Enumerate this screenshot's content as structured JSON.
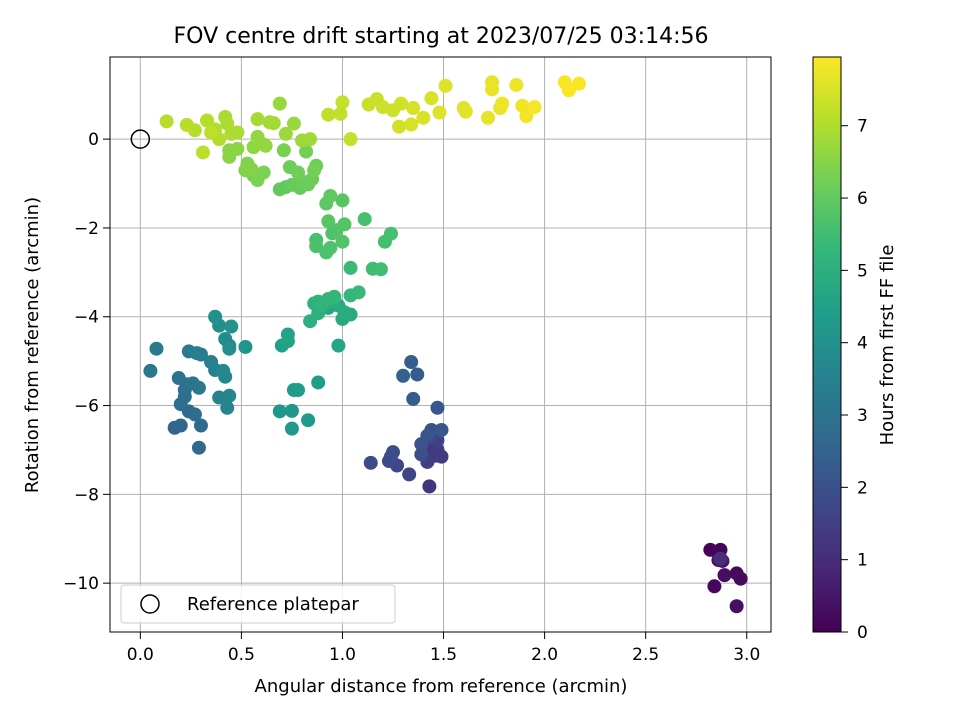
{
  "chart_data": {
    "type": "scatter",
    "title": "FOV centre drift starting at 2023/07/25 03:14:56",
    "xlabel": "Angular distance from reference (arcmin)",
    "ylabel": "Rotation from reference (arcmin)",
    "xlim": [
      -0.15,
      3.12
    ],
    "ylim": [
      -11.1,
      1.85
    ],
    "x_ticks": [
      0.0,
      0.5,
      1.0,
      1.5,
      2.0,
      2.5,
      3.0
    ],
    "x_tick_labels": [
      "0.0",
      "0.5",
      "1.0",
      "1.5",
      "2.0",
      "2.5",
      "3.0"
    ],
    "y_ticks": [
      0,
      -2,
      -4,
      -6,
      -8,
      -10
    ],
    "y_tick_labels": [
      "0",
      "−2",
      "−4",
      "−6",
      "−8",
      "−10"
    ],
    "grid": true,
    "legend": {
      "placement": "lower-left",
      "entries": [
        {
          "label": "Reference platepar",
          "marker": "open-circle",
          "x": 0,
          "y": 0
        }
      ]
    },
    "colorbar": {
      "label": "Hours from first FF file",
      "colormap": "viridis",
      "range": [
        0,
        7.95
      ],
      "ticks": [
        0,
        1,
        2,
        3,
        4,
        5,
        6,
        7
      ],
      "tick_labels": [
        "0",
        "1",
        "2",
        "3",
        "4",
        "5",
        "6",
        "7"
      ]
    },
    "colors": {
      "viridis": [
        "#440154",
        "#482878",
        "#3e4989",
        "#31688e",
        "#26828e",
        "#1f9e89",
        "#35b779",
        "#6ece58",
        "#b5de2b",
        "#fde725"
      ]
    },
    "series": [
      {
        "marker": "filled-circle",
        "points": [
          [
            2.82,
            -9.25,
            0.05
          ],
          [
            2.87,
            -9.25,
            0.1
          ],
          [
            2.84,
            -10.07,
            0.15
          ],
          [
            2.95,
            -9.78,
            0.2
          ],
          [
            2.97,
            -9.9,
            0.25
          ],
          [
            2.89,
            -9.82,
            0.3
          ],
          [
            2.95,
            -10.52,
            0.35
          ],
          [
            2.86,
            -9.48,
            0.4
          ],
          [
            2.88,
            -9.5,
            0.5
          ],
          [
            2.87,
            -9.45,
            1.05
          ],
          [
            1.43,
            -7.82,
            1.2
          ],
          [
            1.46,
            -7.13,
            1.25
          ],
          [
            1.41,
            -7.05,
            1.3
          ],
          [
            1.43,
            -6.9,
            1.35
          ],
          [
            1.47,
            -7.0,
            1.4
          ],
          [
            1.49,
            -7.15,
            1.45
          ],
          [
            1.42,
            -7.27,
            1.5
          ],
          [
            1.47,
            -6.78,
            1.55
          ],
          [
            1.43,
            -6.72,
            1.6
          ],
          [
            1.33,
            -7.55,
            1.65
          ],
          [
            1.27,
            -7.35,
            1.7
          ],
          [
            1.24,
            -7.15,
            1.75
          ],
          [
            1.23,
            -7.25,
            1.8
          ],
          [
            1.14,
            -7.29,
            1.85
          ],
          [
            1.25,
            -7.05,
            1.9
          ],
          [
            1.39,
            -7.1,
            1.95
          ],
          [
            1.44,
            -6.55,
            2.0
          ],
          [
            1.39,
            -6.87,
            2.05
          ],
          [
            1.42,
            -6.68,
            2.1
          ],
          [
            1.47,
            -6.05,
            2.15
          ],
          [
            1.49,
            -6.55,
            2.2
          ],
          [
            1.37,
            -5.3,
            2.3
          ],
          [
            1.35,
            -5.85,
            2.35
          ],
          [
            1.34,
            -5.02,
            2.4
          ],
          [
            1.3,
            -5.33,
            2.45
          ],
          [
            0.17,
            -6.5,
            2.55
          ],
          [
            0.2,
            -6.45,
            2.6
          ],
          [
            0.29,
            -6.95,
            2.65
          ],
          [
            0.3,
            -6.45,
            2.7
          ],
          [
            0.24,
            -6.13,
            2.75
          ],
          [
            0.27,
            -6.2,
            2.8
          ],
          [
            0.2,
            -5.97,
            2.85
          ],
          [
            0.22,
            -5.8,
            2.9
          ],
          [
            0.22,
            -5.65,
            2.95
          ],
          [
            0.23,
            -5.52,
            3.0
          ],
          [
            0.19,
            -5.38,
            3.05
          ],
          [
            0.26,
            -5.5,
            3.1
          ],
          [
            0.29,
            -5.6,
            3.15
          ],
          [
            0.05,
            -5.22,
            3.2
          ],
          [
            0.08,
            -4.72,
            3.25
          ],
          [
            0.24,
            -4.78,
            3.3
          ],
          [
            0.28,
            -4.82,
            3.35
          ],
          [
            0.3,
            -4.85,
            3.4
          ],
          [
            0.35,
            -5.02,
            3.45
          ],
          [
            0.37,
            -5.2,
            3.5
          ],
          [
            0.39,
            -5.82,
            3.55
          ],
          [
            0.43,
            -6.05,
            3.6
          ],
          [
            0.44,
            -5.78,
            3.65
          ],
          [
            0.42,
            -5.35,
            3.7
          ],
          [
            0.41,
            -5.22,
            3.75
          ],
          [
            0.44,
            -4.65,
            3.8
          ],
          [
            0.42,
            -4.5,
            3.85
          ],
          [
            0.44,
            -4.72,
            3.9
          ],
          [
            0.39,
            -4.2,
            3.95
          ],
          [
            0.37,
            -4.0,
            4.0
          ],
          [
            0.45,
            -4.22,
            4.05
          ],
          [
            0.52,
            -4.68,
            4.1
          ],
          [
            0.69,
            -6.13,
            4.15
          ],
          [
            0.75,
            -6.12,
            4.2
          ],
          [
            0.75,
            -6.52,
            4.25
          ],
          [
            0.83,
            -6.33,
            4.3
          ],
          [
            0.76,
            -5.65,
            4.35
          ],
          [
            0.78,
            -5.65,
            4.4
          ],
          [
            0.88,
            -5.48,
            4.45
          ],
          [
            0.7,
            -4.65,
            4.5
          ],
          [
            0.73,
            -4.55,
            4.55
          ],
          [
            0.73,
            -4.4,
            4.6
          ],
          [
            0.98,
            -4.65,
            4.65
          ],
          [
            0.93,
            -3.8,
            4.7
          ],
          [
            0.98,
            -3.75,
            4.75
          ],
          [
            1.0,
            -4.05,
            4.8
          ],
          [
            1.04,
            -3.95,
            4.85
          ],
          [
            1.01,
            -3.9,
            4.9
          ],
          [
            0.96,
            -3.65,
            4.95
          ],
          [
            0.88,
            -3.92,
            5.0
          ],
          [
            0.84,
            -4.1,
            5.0
          ],
          [
            0.86,
            -3.7,
            5.05
          ],
          [
            0.88,
            -3.66,
            5.1
          ],
          [
            0.9,
            -3.74,
            5.15
          ],
          [
            0.93,
            -3.6,
            5.2
          ],
          [
            0.96,
            -3.55,
            5.25
          ],
          [
            1.04,
            -3.52,
            5.3
          ],
          [
            1.08,
            -3.45,
            5.35
          ],
          [
            1.04,
            -2.9,
            5.4
          ],
          [
            1.15,
            -2.92,
            5.45
          ],
          [
            1.19,
            -2.93,
            5.5
          ],
          [
            1.21,
            -2.31,
            5.55
          ],
          [
            1.24,
            -2.13,
            5.6
          ],
          [
            1.11,
            -1.8,
            5.6
          ],
          [
            0.87,
            -2.27,
            5.6
          ],
          [
            0.87,
            -2.41,
            5.65
          ],
          [
            0.92,
            -2.55,
            5.65
          ],
          [
            0.94,
            -2.45,
            5.7
          ],
          [
            0.95,
            -2.12,
            5.7
          ],
          [
            0.97,
            -2.05,
            5.75
          ],
          [
            1.0,
            -2.31,
            5.75
          ],
          [
            1.01,
            -1.92,
            5.8
          ],
          [
            1.0,
            -1.38,
            5.85
          ],
          [
            0.93,
            -1.85,
            5.85
          ],
          [
            0.92,
            -1.45,
            5.9
          ],
          [
            0.94,
            -1.28,
            5.95
          ],
          [
            0.69,
            -1.13,
            6.0
          ],
          [
            0.72,
            -1.08,
            6.0
          ],
          [
            0.75,
            -1.03,
            6.05
          ],
          [
            0.79,
            -1.1,
            6.05
          ],
          [
            0.8,
            -0.95,
            6.1
          ],
          [
            0.83,
            -1.02,
            6.1
          ],
          [
            0.85,
            -0.9,
            6.15
          ],
          [
            0.74,
            -0.63,
            6.15
          ],
          [
            0.78,
            -0.75,
            6.2
          ],
          [
            0.87,
            -0.6,
            6.2
          ],
          [
            0.86,
            -0.7,
            6.25
          ],
          [
            0.82,
            -0.28,
            6.25
          ],
          [
            0.71,
            -0.25,
            6.3
          ],
          [
            0.56,
            -0.82,
            6.3
          ],
          [
            0.58,
            -0.92,
            6.35
          ],
          [
            0.61,
            -0.75,
            6.35
          ],
          [
            0.53,
            -0.55,
            6.4
          ],
          [
            0.52,
            -0.7,
            6.45
          ],
          [
            0.55,
            -0.68,
            6.45
          ],
          [
            0.44,
            -0.4,
            6.5
          ],
          [
            0.44,
            -0.25,
            6.55
          ],
          [
            0.48,
            -0.22,
            6.55
          ],
          [
            0.56,
            -0.18,
            6.6
          ],
          [
            0.62,
            -0.15,
            6.6
          ],
          [
            0.58,
            0.05,
            6.65
          ],
          [
            0.61,
            -0.12,
            6.65
          ],
          [
            0.69,
            0.8,
            6.7
          ],
          [
            0.76,
            0.35,
            6.7
          ],
          [
            0.72,
            0.12,
            6.75
          ],
          [
            0.8,
            -0.03,
            6.75
          ],
          [
            0.84,
            0.0,
            6.8
          ],
          [
            0.64,
            0.38,
            6.8
          ],
          [
            0.66,
            0.36,
            6.85
          ],
          [
            0.58,
            0.45,
            6.85
          ],
          [
            0.48,
            0.15,
            6.9
          ],
          [
            0.42,
            0.5,
            6.9
          ],
          [
            0.43,
            0.35,
            6.95
          ],
          [
            0.45,
            0.12,
            6.95
          ],
          [
            0.37,
            0.22,
            7.0
          ],
          [
            0.39,
            0.0,
            7.0
          ],
          [
            0.33,
            0.42,
            7.05
          ],
          [
            0.27,
            0.2,
            7.05
          ],
          [
            0.23,
            0.32,
            7.1
          ],
          [
            0.13,
            0.4,
            7.1
          ],
          [
            0.31,
            -0.3,
            7.15
          ],
          [
            0.35,
            0.15,
            7.15
          ],
          [
            0.93,
            0.55,
            7.2
          ],
          [
            0.99,
            0.57,
            7.2
          ],
          [
            1.0,
            0.83,
            7.25
          ],
          [
            1.04,
            0.0,
            7.25
          ],
          [
            1.13,
            0.78,
            7.3
          ],
          [
            1.17,
            0.9,
            7.3
          ],
          [
            1.2,
            0.72,
            7.35
          ],
          [
            1.25,
            0.65,
            7.35
          ],
          [
            1.28,
            0.28,
            7.4
          ],
          [
            1.29,
            0.8,
            7.4
          ],
          [
            1.34,
            0.33,
            7.45
          ],
          [
            1.35,
            0.7,
            7.45
          ],
          [
            1.4,
            0.48,
            7.5
          ],
          [
            1.44,
            0.92,
            7.5
          ],
          [
            1.48,
            0.6,
            7.55
          ],
          [
            1.51,
            1.2,
            7.55
          ],
          [
            1.6,
            0.7,
            7.6
          ],
          [
            1.61,
            0.62,
            7.6
          ],
          [
            1.72,
            0.48,
            7.65
          ],
          [
            1.74,
            1.28,
            7.65
          ],
          [
            1.74,
            1.12,
            7.7
          ],
          [
            1.78,
            0.7,
            7.7
          ],
          [
            1.79,
            0.8,
            7.75
          ],
          [
            1.86,
            1.22,
            7.75
          ],
          [
            1.89,
            0.75,
            7.8
          ],
          [
            1.91,
            0.52,
            7.8
          ],
          [
            1.95,
            0.72,
            7.85
          ],
          [
            2.1,
            1.28,
            7.85
          ],
          [
            2.12,
            1.1,
            7.9
          ],
          [
            2.17,
            1.25,
            7.9
          ]
        ]
      }
    ]
  }
}
